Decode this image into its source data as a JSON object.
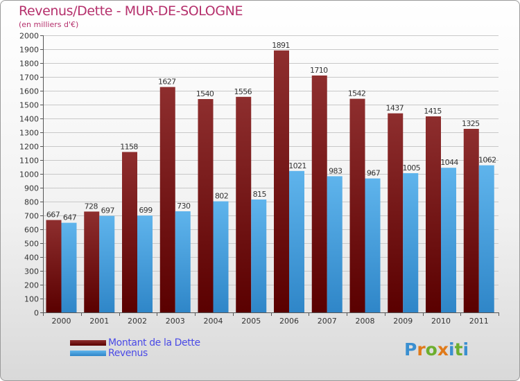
{
  "title": "Revenus/Dette - MUR-DE-SOLOGNE",
  "subtitle": "(en milliers d'€)",
  "legend": [
    {
      "label": "Montant de la Dette",
      "color": "#6e0a0a"
    },
    {
      "label": "Revenus",
      "color": "#3a9be0"
    }
  ],
  "logo": {
    "text": "Proxiti",
    "letters": [
      "P",
      "r",
      "o",
      "x",
      "i",
      "t",
      "i"
    ],
    "colors": [
      "#3a8fd0",
      "#e07a1a",
      "#6cae2e",
      "#e07a1a",
      "#3a8fd0",
      "#6cae2e",
      "#3a8fd0"
    ]
  },
  "colors": {
    "debt_top": "#8e2e2e",
    "debt_bottom": "#5a0000",
    "rev_top": "#5fb4ec",
    "rev_bottom": "#2f86c8"
  },
  "chart_data": {
    "type": "bar",
    "title": "Revenus/Dette - MUR-DE-SOLOGNE",
    "ylabel": "(en milliers d'€)",
    "xlabel": "",
    "categories": [
      "2000",
      "2001",
      "2002",
      "2003",
      "2004",
      "2005",
      "2006",
      "2007",
      "2008",
      "2009",
      "2010",
      "2011"
    ],
    "series": [
      {
        "name": "Montant de la Dette",
        "values": [
          667,
          728,
          1158,
          1627,
          1540,
          1556,
          1891,
          1710,
          1542,
          1437,
          1415,
          1325
        ]
      },
      {
        "name": "Revenus",
        "values": [
          647,
          697,
          699,
          730,
          802,
          815,
          1021,
          983,
          967,
          1005,
          1044,
          1062
        ]
      }
    ],
    "ylim": [
      0,
      2000
    ],
    "yticks": [
      0,
      100,
      200,
      300,
      400,
      500,
      600,
      700,
      800,
      900,
      1000,
      1100,
      1200,
      1300,
      1400,
      1500,
      1600,
      1700,
      1800,
      1900,
      2000
    ],
    "grid": true,
    "legend_position": "bottom-left"
  }
}
